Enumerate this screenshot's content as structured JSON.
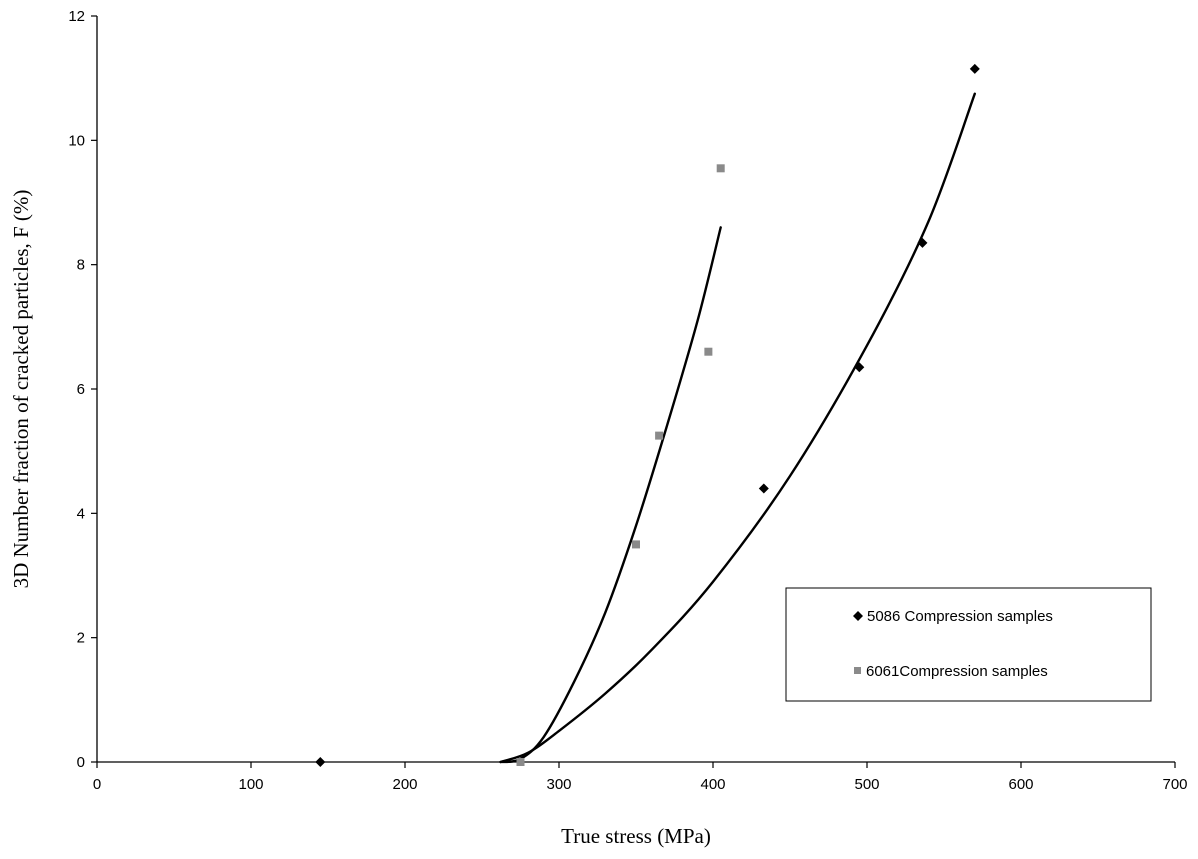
{
  "chart_data": {
    "type": "scatter",
    "title": "",
    "xlabel": "True stress (MPa)",
    "ylabel": "3D Number fraction of cracked particles, F (%)",
    "xlim": [
      0,
      700
    ],
    "ylim": [
      0,
      12
    ],
    "xticks": [
      "0",
      "100",
      "200",
      "300",
      "400",
      "500",
      "600",
      "700"
    ],
    "yticks": [
      "0",
      "2",
      "4",
      "6",
      "8",
      "10",
      "12"
    ],
    "grid": false,
    "legend_position": "bottom-right",
    "series": [
      {
        "name": "5086 Compression samples",
        "marker": "diamond",
        "color": "#000000",
        "points": [
          {
            "x": 145,
            "y": 0
          },
          {
            "x": 433,
            "y": 4.4
          },
          {
            "x": 495,
            "y": 6.35
          },
          {
            "x": 536,
            "y": 8.35
          },
          {
            "x": 570,
            "y": 11.15
          }
        ],
        "trendline": [
          {
            "x": 262,
            "y": 0
          },
          {
            "x": 280,
            "y": 0.15
          },
          {
            "x": 300,
            "y": 0.5
          },
          {
            "x": 330,
            "y": 1.1
          },
          {
            "x": 360,
            "y": 1.8
          },
          {
            "x": 400,
            "y": 2.9
          },
          {
            "x": 450,
            "y": 4.6
          },
          {
            "x": 500,
            "y": 6.7
          },
          {
            "x": 540,
            "y": 8.7
          },
          {
            "x": 570,
            "y": 10.75
          }
        ]
      },
      {
        "name": "6061Compression samples",
        "marker": "square",
        "color": "#8a8a8a",
        "points": [
          {
            "x": 275,
            "y": 0
          },
          {
            "x": 350,
            "y": 3.5
          },
          {
            "x": 365,
            "y": 5.25
          },
          {
            "x": 397,
            "y": 6.6
          },
          {
            "x": 405,
            "y": 9.55
          }
        ],
        "trendline": [
          {
            "x": 262,
            "y": 0
          },
          {
            "x": 275,
            "y": 0.05
          },
          {
            "x": 290,
            "y": 0.4
          },
          {
            "x": 310,
            "y": 1.3
          },
          {
            "x": 330,
            "y": 2.4
          },
          {
            "x": 350,
            "y": 3.8
          },
          {
            "x": 370,
            "y": 5.4
          },
          {
            "x": 390,
            "y": 7.1
          },
          {
            "x": 405,
            "y": 8.6
          }
        ]
      }
    ]
  }
}
